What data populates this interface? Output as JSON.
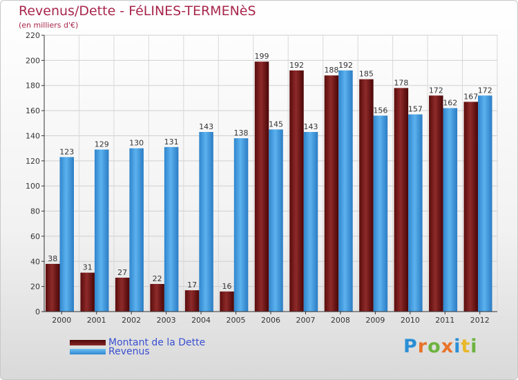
{
  "header": {
    "title": "Revenus/Dette - FéLINES-TERMENèS",
    "subtitle": "(en milliers d'€)"
  },
  "legend": {
    "items": [
      {
        "label": "Montant de la Dette",
        "color": "#7a1a1a"
      },
      {
        "label": "Revenus",
        "color": "#4aa3e6"
      }
    ]
  },
  "logo": {
    "letters": [
      {
        "char": "P",
        "color": "#2a8fd6"
      },
      {
        "char": "r",
        "color": "#e8732a"
      },
      {
        "char": "o",
        "color": "#6db33f"
      },
      {
        "char": "x",
        "color": "#e8732a"
      },
      {
        "char": "i",
        "color": "#2a8fd6"
      },
      {
        "char": "t",
        "color": "#e8b82a"
      },
      {
        "char": "i",
        "color": "#6db33f"
      }
    ]
  },
  "chart_data": {
    "type": "bar",
    "title": "Revenus/Dette - FéLINES-TERMENèS",
    "subtitle": "(en milliers d'€)",
    "categories": [
      "2000",
      "2001",
      "2002",
      "2003",
      "2004",
      "2005",
      "2006",
      "2007",
      "2008",
      "2009",
      "2010",
      "2011",
      "2012"
    ],
    "series": [
      {
        "name": "Montant de la Dette",
        "color": "#7a1a1a",
        "values": [
          38,
          31,
          27,
          22,
          17,
          16,
          199,
          192,
          188,
          185,
          178,
          172,
          167
        ]
      },
      {
        "name": "Revenus",
        "color": "#4aa3e6",
        "values": [
          123,
          129,
          130,
          131,
          143,
          138,
          145,
          143,
          192,
          156,
          157,
          162,
          172
        ]
      }
    ],
    "ylim": [
      0,
      220
    ],
    "yticks": [
      0,
      20,
      40,
      60,
      80,
      100,
      120,
      140,
      160,
      180,
      200,
      220
    ],
    "grid": true,
    "legend_position": "bottom-left"
  }
}
